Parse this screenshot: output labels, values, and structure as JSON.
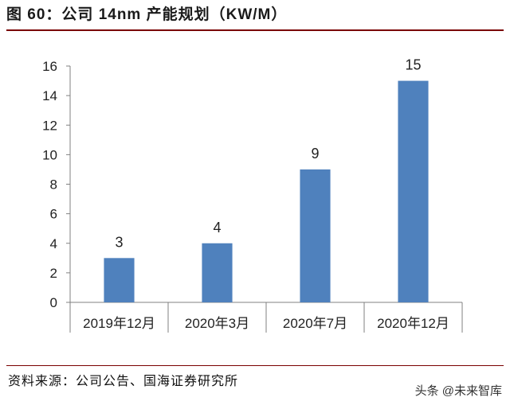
{
  "title": "图 60：公司 14nm 产能规划（KW/M）",
  "source": "资料来源：公司公告、国海证券研究所",
  "watermark": "头条 @未来智库",
  "colors": {
    "bar": "#4f81bd",
    "axis": "#808080",
    "rule": "#7a0000"
  },
  "chart_data": {
    "type": "bar",
    "categories": [
      "2019年12月",
      "2020年3月",
      "2020年7月",
      "2020年12月"
    ],
    "values": [
      3,
      4,
      9,
      15
    ],
    "data_labels": [
      "3",
      "4",
      "9",
      "15"
    ],
    "ylim": [
      0,
      16
    ],
    "yticks": [
      0,
      2,
      4,
      6,
      8,
      10,
      12,
      14,
      16
    ],
    "grid": false,
    "legend": "none"
  }
}
